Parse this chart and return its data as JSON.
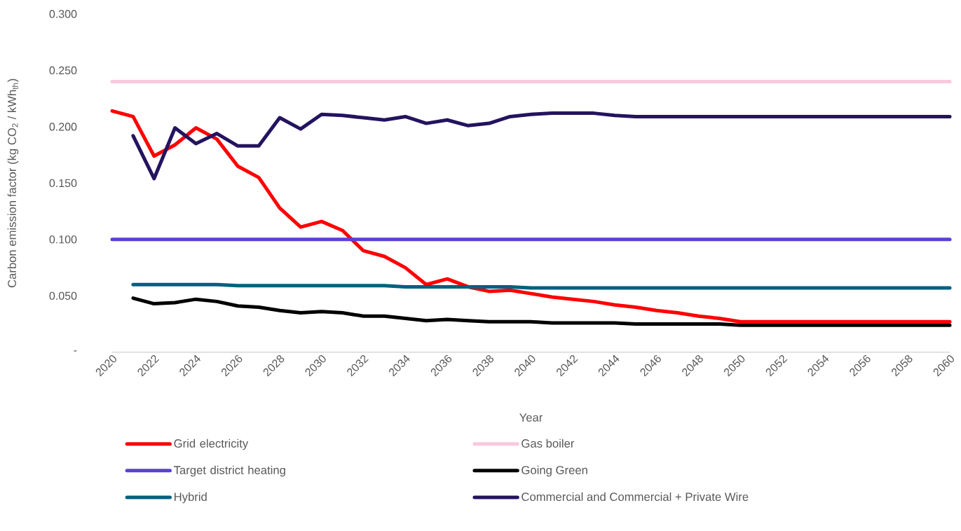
{
  "chart_data": {
    "type": "line",
    "xlabel": "Year",
    "ylabel": "Carbon emission factor (kg CO$_{2}$ / kWh$_{th}$)",
    "x": [
      2020,
      2021,
      2022,
      2023,
      2024,
      2025,
      2026,
      2027,
      2028,
      2029,
      2030,
      2031,
      2032,
      2033,
      2034,
      2035,
      2036,
      2037,
      2038,
      2039,
      2040,
      2041,
      2042,
      2043,
      2044,
      2045,
      2046,
      2047,
      2048,
      2049,
      2050,
      2051,
      2052,
      2053,
      2054,
      2055,
      2056,
      2057,
      2058,
      2059,
      2060
    ],
    "series": [
      {
        "name": "Grid electricity",
        "color": "#ff0000",
        "values": [
          0.214,
          0.209,
          0.174,
          0.184,
          0.199,
          0.189,
          0.165,
          0.155,
          0.128,
          0.111,
          0.116,
          0.108,
          0.09,
          0.085,
          0.075,
          0.06,
          0.065,
          0.058,
          0.054,
          0.055,
          0.052,
          0.049,
          0.047,
          0.045,
          0.042,
          0.04,
          0.037,
          0.035,
          0.032,
          0.03,
          0.027,
          0.027,
          0.027,
          0.027,
          0.027,
          0.027,
          0.027,
          0.027,
          0.027,
          0.027,
          0.027
        ]
      },
      {
        "name": "Gas boiler",
        "color": "#f8c8dc",
        "values": [
          0.24,
          0.24,
          0.24,
          0.24,
          0.24,
          0.24,
          0.24,
          0.24,
          0.24,
          0.24,
          0.24,
          0.24,
          0.24,
          0.24,
          0.24,
          0.24,
          0.24,
          0.24,
          0.24,
          0.24,
          0.24,
          0.24,
          0.24,
          0.24,
          0.24,
          0.24,
          0.24,
          0.24,
          0.24,
          0.24,
          0.24,
          0.24,
          0.24,
          0.24,
          0.24,
          0.24,
          0.24,
          0.24,
          0.24,
          0.24,
          0.24
        ]
      },
      {
        "name": "Target district heating",
        "color": "#5b3fd9",
        "values": [
          0.1,
          0.1,
          0.1,
          0.1,
          0.1,
          0.1,
          0.1,
          0.1,
          0.1,
          0.1,
          0.1,
          0.1,
          0.1,
          0.1,
          0.1,
          0.1,
          0.1,
          0.1,
          0.1,
          0.1,
          0.1,
          0.1,
          0.1,
          0.1,
          0.1,
          0.1,
          0.1,
          0.1,
          0.1,
          0.1,
          0.1,
          0.1,
          0.1,
          0.1,
          0.1,
          0.1,
          0.1,
          0.1,
          0.1,
          0.1,
          0.1
        ]
      },
      {
        "name": "Going Green",
        "color": "#000000",
        "values": [
          null,
          0.048,
          0.043,
          0.044,
          0.047,
          0.045,
          0.041,
          0.04,
          0.037,
          0.035,
          0.036,
          0.035,
          0.032,
          0.032,
          0.03,
          0.028,
          0.029,
          0.028,
          0.027,
          0.027,
          0.027,
          0.026,
          0.026,
          0.026,
          0.026,
          0.025,
          0.025,
          0.025,
          0.025,
          0.025,
          0.024,
          0.024,
          0.024,
          0.024,
          0.024,
          0.024,
          0.024,
          0.024,
          0.024,
          0.024,
          0.024
        ]
      },
      {
        "name": "Hybrid",
        "color": "#006080",
        "values": [
          null,
          0.06,
          0.06,
          0.06,
          0.06,
          0.06,
          0.059,
          0.059,
          0.059,
          0.059,
          0.059,
          0.059,
          0.059,
          0.059,
          0.058,
          0.058,
          0.058,
          0.058,
          0.058,
          0.058,
          0.057,
          0.057,
          0.057,
          0.057,
          0.057,
          0.057,
          0.057,
          0.057,
          0.057,
          0.057,
          0.057,
          0.057,
          0.057,
          0.057,
          0.057,
          0.057,
          0.057,
          0.057,
          0.057,
          0.057,
          0.057
        ]
      },
      {
        "name": "Commercial and Commercial + Private Wire",
        "color": "#24135f",
        "values": [
          null,
          0.192,
          0.154,
          0.199,
          0.185,
          0.194,
          0.183,
          0.183,
          0.208,
          0.198,
          0.211,
          0.21,
          0.208,
          0.206,
          0.209,
          0.203,
          0.206,
          0.201,
          0.203,
          0.209,
          0.211,
          0.212,
          0.212,
          0.212,
          0.21,
          0.209,
          0.209,
          0.209,
          0.209,
          0.209,
          0.209,
          0.209,
          0.209,
          0.209,
          0.209,
          0.209,
          0.209,
          0.209,
          0.209,
          0.209,
          0.209
        ]
      }
    ],
    "xlim": [
      2020,
      2060
    ],
    "xticks": [
      2020,
      2022,
      2024,
      2026,
      2028,
      2030,
      2032,
      2034,
      2036,
      2038,
      2040,
      2042,
      2044,
      2046,
      2048,
      2050,
      2052,
      2054,
      2056,
      2058,
      2060
    ],
    "ylim": [
      0,
      0.3
    ],
    "yticks": [
      {
        "value": 0,
        "label": "-"
      },
      {
        "value": 0.05,
        "label": "0.050"
      },
      {
        "value": 0.1,
        "label": "0.100"
      },
      {
        "value": 0.15,
        "label": "0.150"
      },
      {
        "value": 0.2,
        "label": "0.200"
      },
      {
        "value": 0.25,
        "label": "0.250"
      },
      {
        "value": 0.3,
        "label": "0.300"
      }
    ],
    "legend": "bottom"
  }
}
